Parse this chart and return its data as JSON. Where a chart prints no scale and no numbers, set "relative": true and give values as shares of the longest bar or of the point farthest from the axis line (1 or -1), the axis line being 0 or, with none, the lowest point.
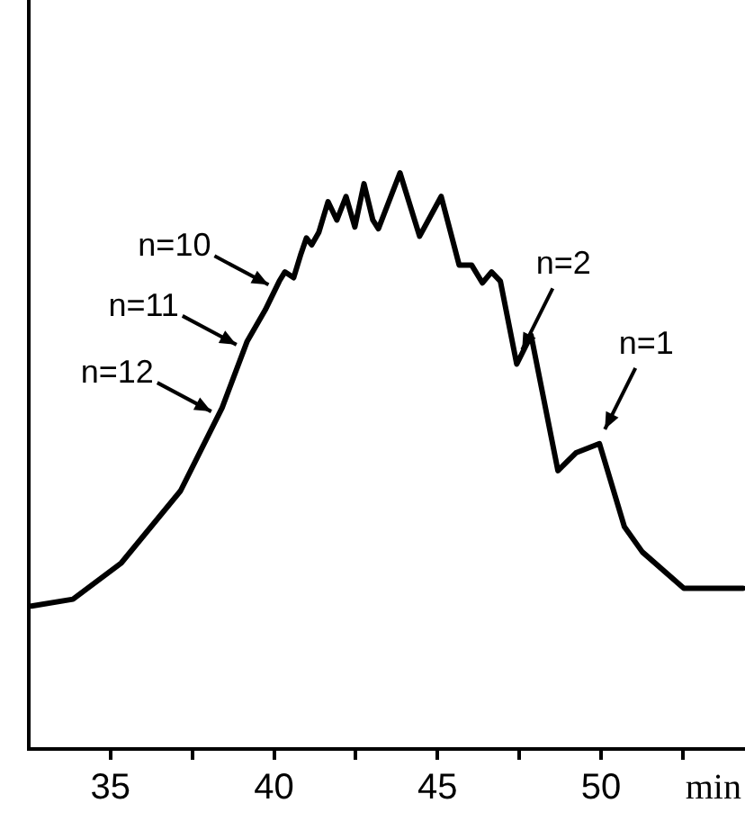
{
  "chart_data": {
    "type": "line",
    "xlabel": "min",
    "relative": true,
    "color": "#000000",
    "marker": "none",
    "line_style": "solid",
    "legend": false,
    "grid": false,
    "tick_labels": "x",
    "x": [
      32.58,
      33.85,
      35.33,
      37.14,
      38.41,
      39.18,
      39.73,
      40.16,
      40.33,
      40.6,
      40.82,
      40.99,
      41.15,
      41.37,
      41.65,
      41.92,
      42.2,
      42.47,
      42.75,
      43.02,
      43.19,
      43.85,
      44.45,
      45.11,
      45.66,
      46.04,
      46.37,
      46.65,
      46.92,
      47.42,
      47.86,
      48.68,
      49.23,
      49.95,
      50.71,
      51.26,
      52.53,
      54.34
    ],
    "values": [
      0.248,
      0.26,
      0.323,
      0.448,
      0.592,
      0.708,
      0.762,
      0.812,
      0.828,
      0.818,
      0.859,
      0.887,
      0.875,
      0.897,
      0.95,
      0.918,
      0.959,
      0.906,
      0.981,
      0.918,
      0.903,
      1.0,
      0.89,
      0.959,
      0.84,
      0.84,
      0.809,
      0.828,
      0.812,
      0.668,
      0.718,
      0.483,
      0.514,
      0.53,
      0.386,
      0.342,
      0.279,
      0.279
    ],
    "xlim": [
      32.5,
      54.4
    ],
    "xticks": [
      35,
      {
        "value": 37.5,
        "label": null
      },
      40,
      {
        "value": 42.5,
        "label": null
      },
      45,
      {
        "value": 47.5,
        "label": null
      },
      50,
      {
        "value": 52.5,
        "label": null
      }
    ],
    "annotations": [
      {
        "text": "n=10",
        "x": 40.16,
        "y": 0.812
      },
      {
        "text": "n=11",
        "x": 39.18,
        "y": 0.708
      },
      {
        "text": "n=12",
        "x": 38.41,
        "y": 0.592
      },
      {
        "text": "n=2",
        "x": 47.42,
        "y": 0.668
      },
      {
        "text": "n=1",
        "x": 49.95,
        "y": 0.53
      }
    ]
  }
}
